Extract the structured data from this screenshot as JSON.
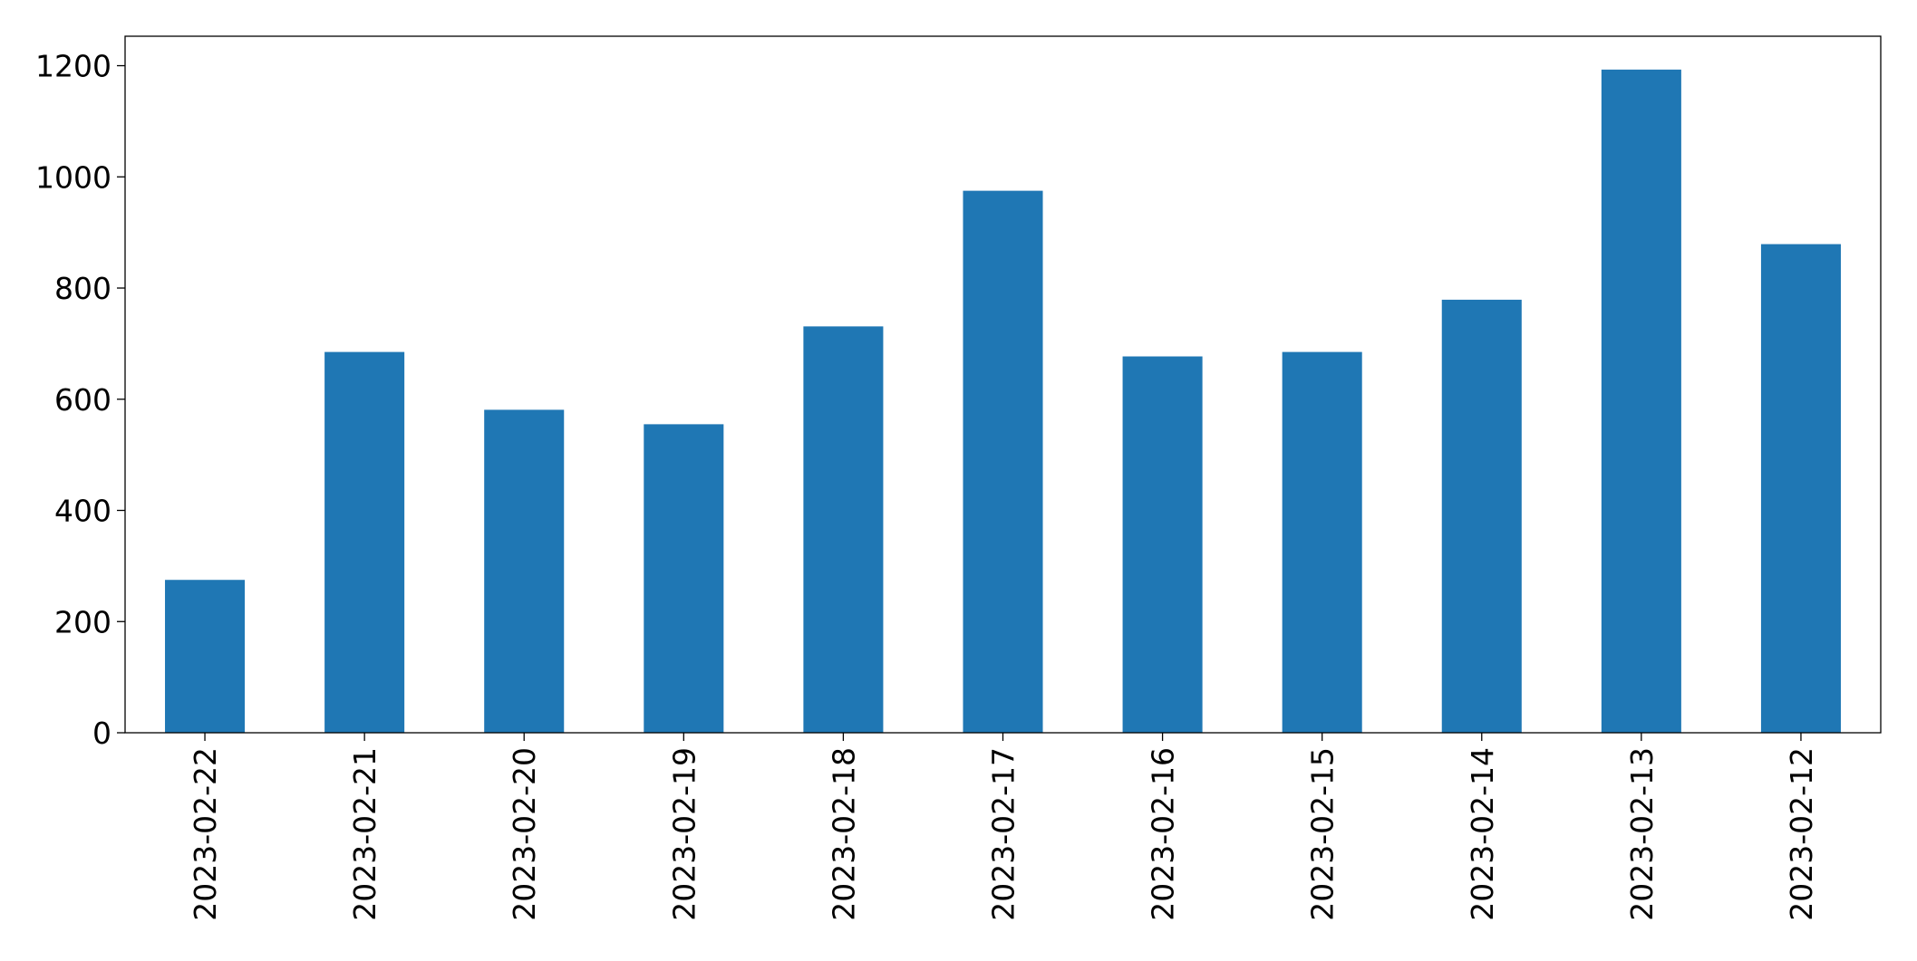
{
  "chart_data": {
    "type": "bar",
    "categories": [
      "2023-02-22",
      "2023-02-21",
      "2023-02-20",
      "2023-02-19",
      "2023-02-18",
      "2023-02-17",
      "2023-02-16",
      "2023-02-15",
      "2023-02-14",
      "2023-02-13",
      "2023-02-12"
    ],
    "values": [
      275,
      685,
      581,
      555,
      731,
      975,
      677,
      685,
      779,
      1193,
      879
    ],
    "color": "#1f77b4",
    "ylim": [
      0,
      1253
    ],
    "yticks": [
      0,
      200,
      400,
      600,
      800,
      1000,
      1200
    ],
    "grid": false
  }
}
